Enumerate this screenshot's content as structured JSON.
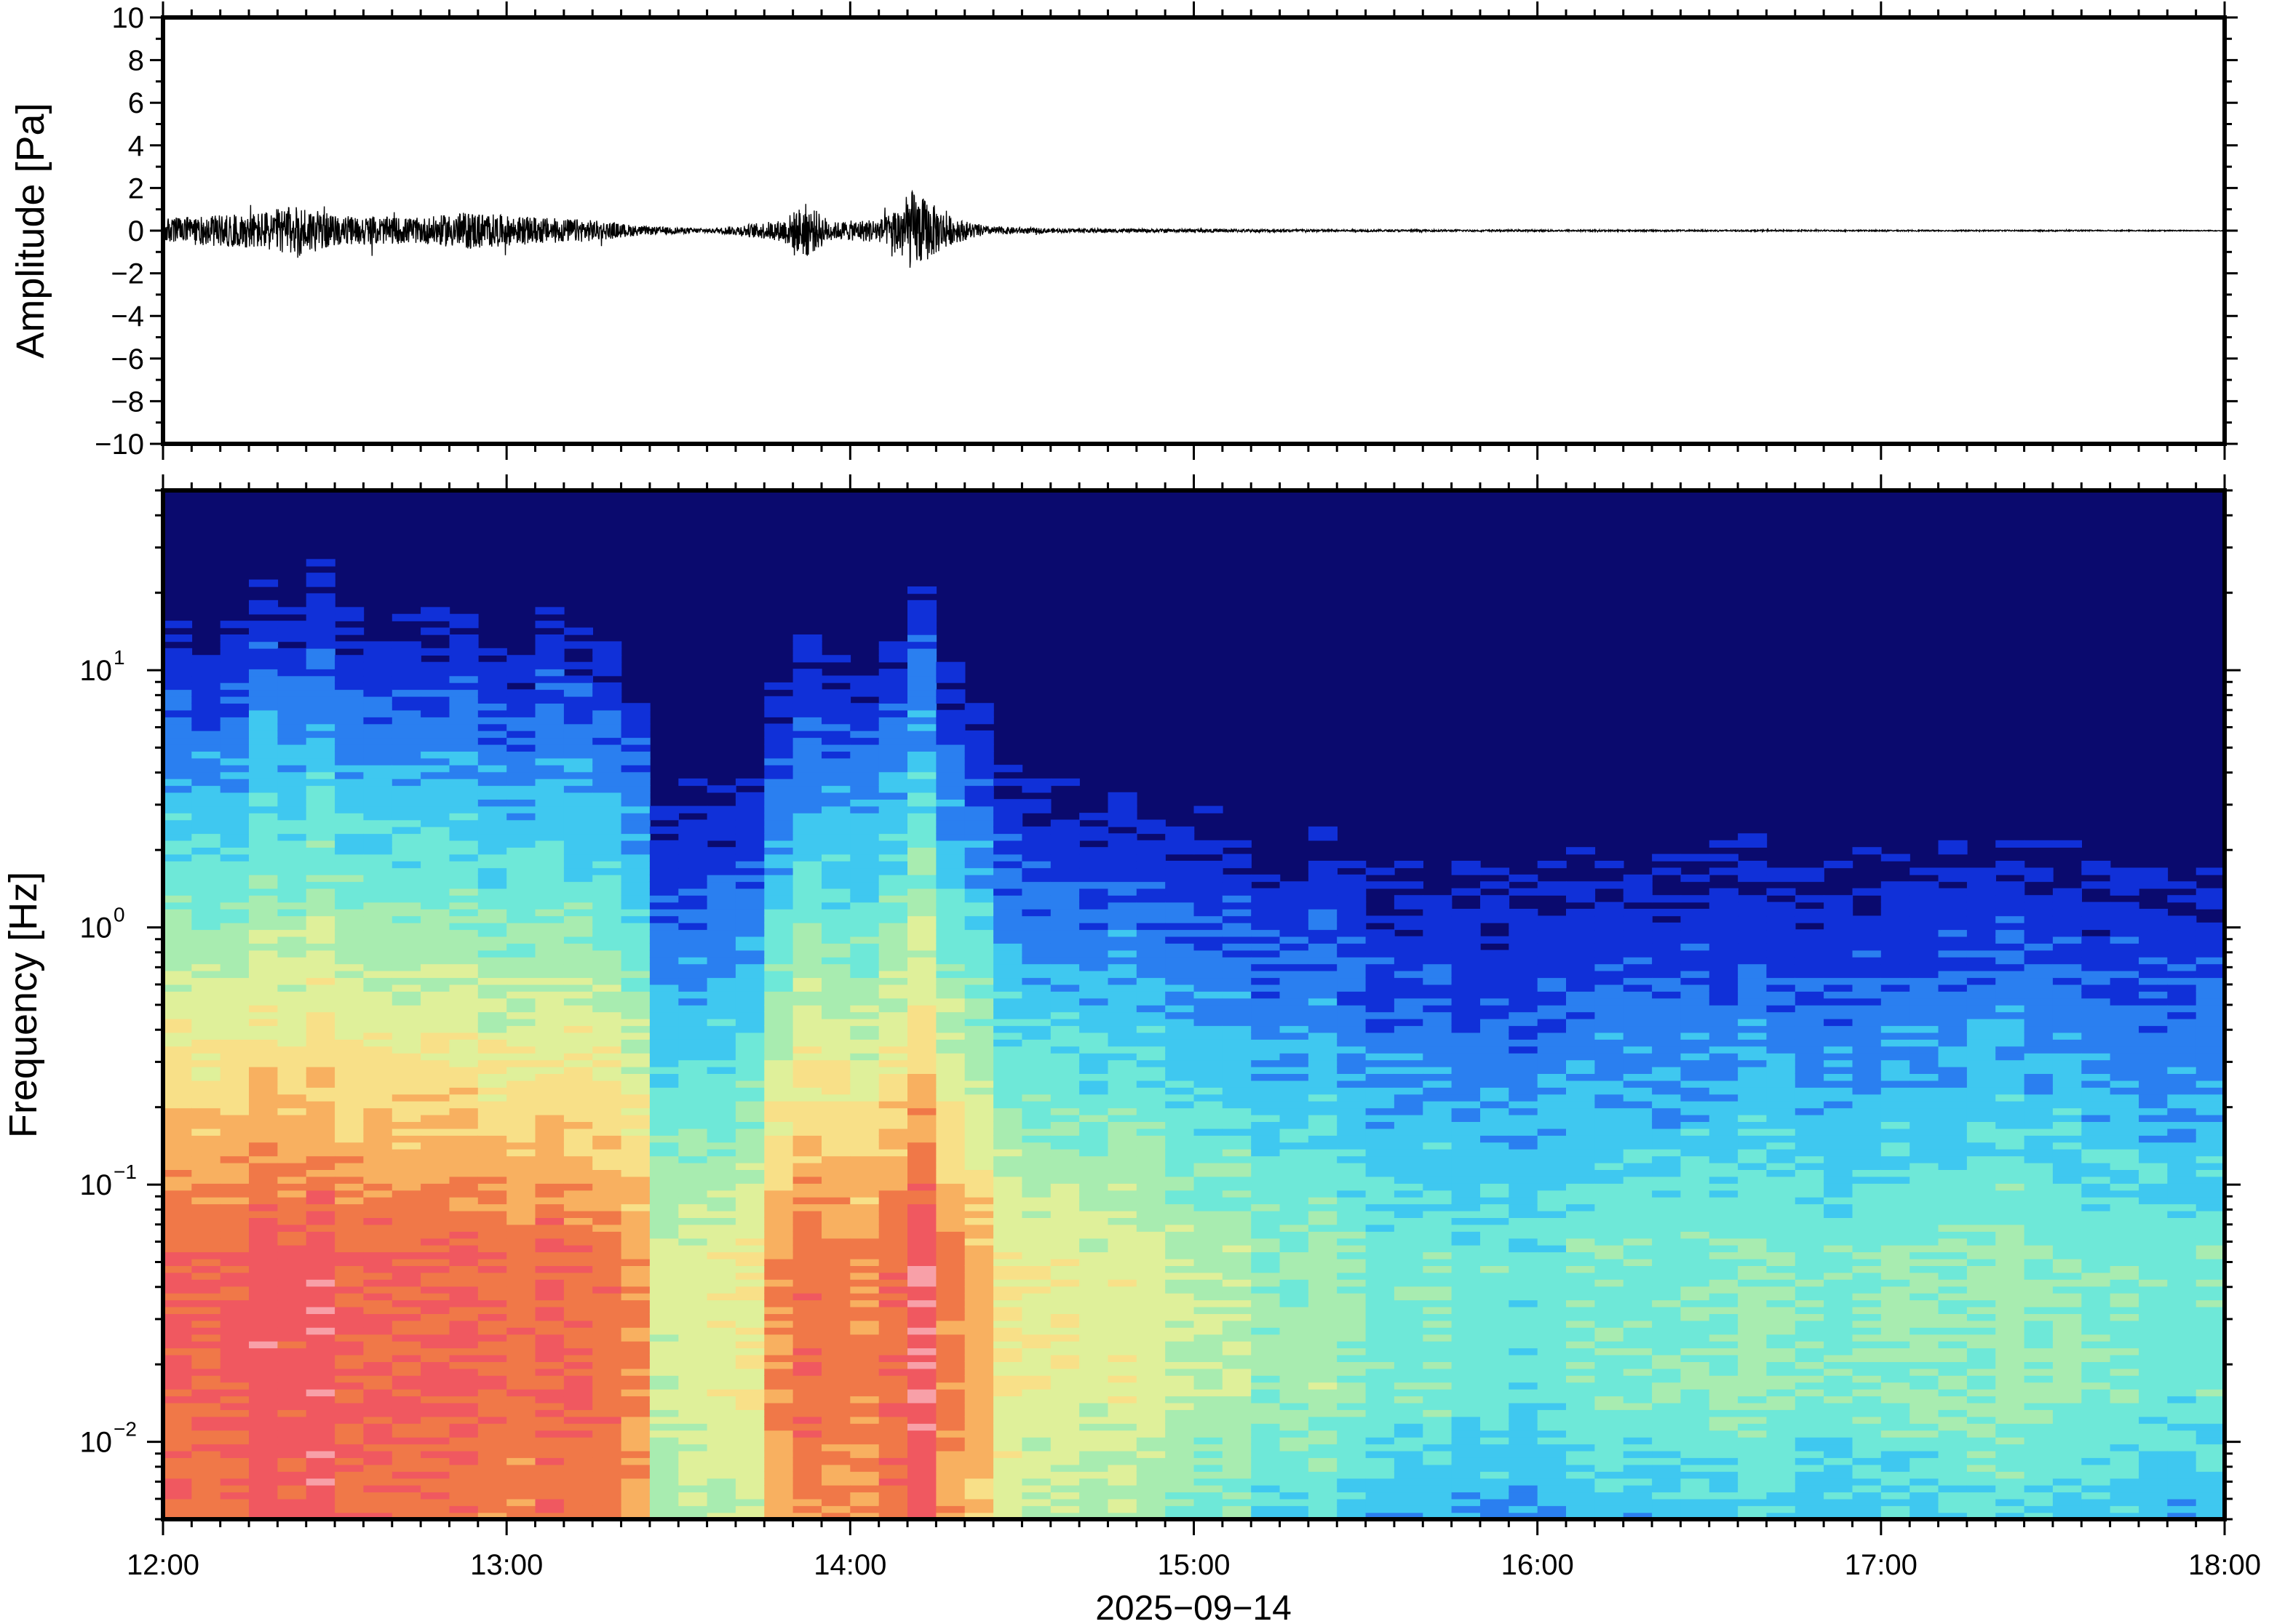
{
  "chart_data": [
    {
      "type": "line",
      "ylabel": "Amplitude [Pa]",
      "ylim": [
        -10,
        10
      ],
      "yticks": [
        "10",
        "8",
        "6",
        "4",
        "2",
        "0",
        "−2",
        "−4",
        "−6",
        "−8",
        "−10"
      ],
      "ytick_values": [
        10,
        8,
        6,
        4,
        2,
        0,
        -2,
        -4,
        -6,
        -8,
        -10
      ],
      "xlim": [
        "12:00",
        "18:00"
      ],
      "series": [
        {
          "color": "#000000",
          "x_hours": [
            12.0,
            12.25,
            12.4,
            12.5,
            12.75,
            12.9,
            13.0,
            13.25,
            13.4,
            13.6,
            13.8,
            13.87,
            13.95,
            14.1,
            14.18,
            14.3,
            14.4,
            14.6,
            15.0,
            15.5,
            16.0,
            17.0,
            17.5,
            18.0
          ],
          "envelope_pa": [
            0.6,
            0.8,
            1.2,
            0.7,
            0.6,
            0.9,
            0.7,
            0.5,
            0.2,
            0.1,
            0.5,
            1.3,
            0.4,
            0.6,
            1.9,
            0.6,
            0.2,
            0.1,
            0.08,
            0.05,
            0.04,
            0.03,
            0.03,
            0.02
          ]
        }
      ]
    },
    {
      "type": "heatmap",
      "ylabel": "Frequency [Hz]",
      "yscale": "log",
      "ylim": [
        0.005,
        50
      ],
      "yticks": [
        {
          "value": 10,
          "base": "10",
          "exp": "1"
        },
        {
          "value": 1,
          "base": "10",
          "exp": "0"
        },
        {
          "value": 0.1,
          "base": "10",
          "exp": "−1"
        },
        {
          "value": 0.01,
          "base": "10",
          "exp": "−2"
        }
      ],
      "xlabel": "2025−09−14",
      "xticks": [
        "12:00",
        "13:00",
        "14:00",
        "15:00",
        "16:00",
        "17:00",
        "18:00"
      ],
      "xlim": [
        "12:00",
        "18:00"
      ],
      "colormap": "rainbow",
      "colors": [
        "#0a0a6e",
        "#1030d8",
        "#2a7ff0",
        "#3fc8f0",
        "#6ee8d8",
        "#a8ecb0",
        "#dff09a",
        "#f8e088",
        "#f8b060",
        "#f07848",
        "#f05860",
        "#f8a0a8"
      ],
      "energy_profile": {
        "x_hours": [
          12.0,
          12.5,
          13.0,
          13.35,
          13.45,
          13.7,
          13.85,
          14.0,
          14.2,
          14.35,
          14.5,
          15.0,
          15.5,
          16.0,
          16.5,
          17.0,
          17.25,
          17.5,
          18.0
        ],
        "level": [
          0.92,
          0.95,
          0.9,
          0.88,
          0.55,
          0.6,
          0.9,
          0.82,
          0.96,
          0.8,
          0.62,
          0.55,
          0.45,
          0.4,
          0.48,
          0.42,
          0.5,
          0.48,
          0.42
        ]
      }
    }
  ]
}
